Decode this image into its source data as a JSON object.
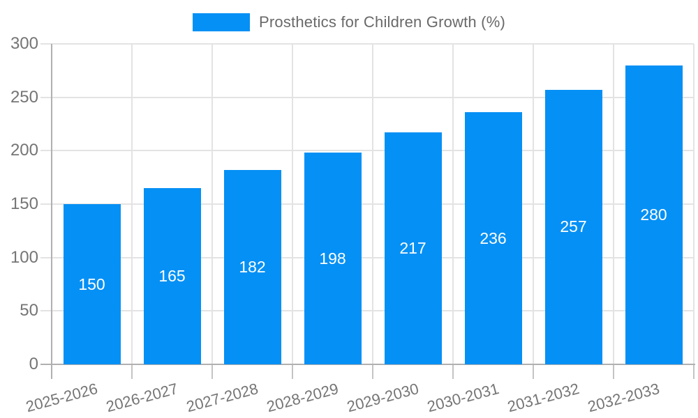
{
  "legend": {
    "label": "Prosthetics for Children Growth (%)"
  },
  "chart_data": {
    "type": "bar",
    "title": "Prosthetics for Children Growth (%)",
    "categories": [
      "2025-2026",
      "2026-2027",
      "2027-2028",
      "2028-2029",
      "2029-2030",
      "2030-2031",
      "2031-2032",
      "2032-2033"
    ],
    "series": [
      {
        "name": "Prosthetics for Children Growth (%)",
        "values": [
          150,
          165,
          182,
          198,
          217,
          236,
          257,
          280
        ]
      }
    ],
    "value_labels_shown": true,
    "xlabel": "",
    "ylabel": "",
    "ylim": [
      0,
      300
    ],
    "yticks": [
      0,
      50,
      100,
      150,
      200,
      250,
      300
    ],
    "grid": true,
    "legend_position": "top-center",
    "colors": {
      "bar": "#0590f5",
      "bar_value_label": "#ffffff",
      "gridline": "#e3e3e3",
      "axis_line": "#b0b0b0",
      "x_tick": "#c4c4c4",
      "axis_text": "#757575",
      "legend_text": "#696969"
    }
  }
}
